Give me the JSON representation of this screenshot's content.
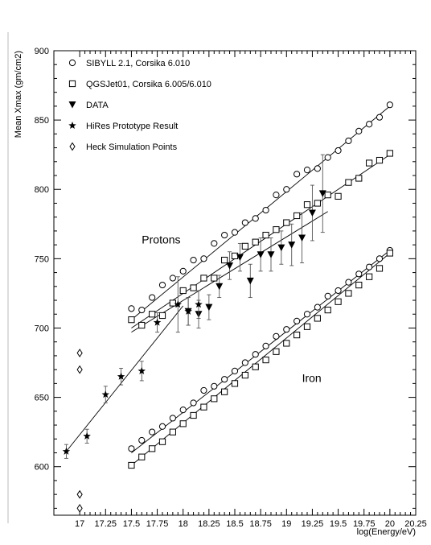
{
  "chart_data": {
    "type": "scatter",
    "xlabel": "log(Energy/eV)",
    "ylabel": "Mean Xmax (gm/cm2)",
    "xlim": [
      16.75,
      20.25
    ],
    "ylim": [
      565,
      900
    ],
    "x_ticks": [
      17,
      17.25,
      17.5,
      17.75,
      18,
      18.25,
      18.5,
      18.75,
      19,
      19.25,
      19.5,
      19.75,
      20,
      20.25
    ],
    "x_tick_labels": [
      "17",
      "17.25",
      "17.5",
      "17.75",
      "18",
      "18.25",
      "18.5",
      "18.75",
      "19",
      "19.25",
      "19.5",
      "19.75",
      "20",
      "20.25"
    ],
    "y_ticks": [
      600,
      650,
      700,
      750,
      800,
      850,
      900
    ],
    "y_tick_labels": [
      "600",
      "650",
      "700",
      "750",
      "800",
      "850",
      "900"
    ],
    "grid": false,
    "legend_position": "top-left",
    "legend": [
      {
        "label": "SIBYLL 2.1, Corsika 6.010",
        "marker": "circle"
      },
      {
        "label": "QGSJet01, Corsika 6.005/6.010",
        "marker": "square"
      },
      {
        "label": "DATA",
        "marker": "triangle-down"
      },
      {
        "label": "HiRes Prototype Result",
        "marker": "star"
      },
      {
        "label": "Heck Simulation Points",
        "marker": "diamond"
      }
    ],
    "annotations": [
      {
        "text": "Protons",
        "x": 17.6,
        "y": 761
      },
      {
        "text": "Iron",
        "x": 19.15,
        "y": 661
      }
    ],
    "series": [
      {
        "name": "SIBYLL 2.1, Corsika 6.010",
        "group": "Protons",
        "marker": "circle",
        "points": [
          [
            17.5,
            714
          ],
          [
            17.6,
            713
          ],
          [
            17.7,
            722
          ],
          [
            17.8,
            731
          ],
          [
            17.9,
            736
          ],
          [
            18.0,
            741
          ],
          [
            18.1,
            749
          ],
          [
            18.2,
            750
          ],
          [
            18.3,
            761
          ],
          [
            18.4,
            767
          ],
          [
            18.5,
            769
          ],
          [
            18.6,
            776
          ],
          [
            18.7,
            779
          ],
          [
            18.8,
            785
          ],
          [
            18.9,
            796
          ],
          [
            19.0,
            800
          ],
          [
            19.1,
            811
          ],
          [
            19.2,
            814
          ],
          [
            19.3,
            815
          ],
          [
            19.4,
            823
          ],
          [
            19.5,
            828
          ],
          [
            19.6,
            835
          ],
          [
            19.7,
            842
          ],
          [
            19.8,
            847
          ],
          [
            19.9,
            852
          ],
          [
            20.0,
            861
          ]
        ],
        "fit": [
          [
            17.5,
            706
          ],
          [
            20.0,
            860
          ]
        ]
      },
      {
        "name": "QGSJet01, Corsika 6.005/6.010",
        "group": "Protons",
        "marker": "square",
        "points": [
          [
            17.5,
            706
          ],
          [
            17.6,
            702
          ],
          [
            17.7,
            710
          ],
          [
            17.8,
            709
          ],
          [
            17.9,
            718
          ],
          [
            18.0,
            727
          ],
          [
            18.1,
            729
          ],
          [
            18.2,
            736
          ],
          [
            18.3,
            736
          ],
          [
            18.4,
            749
          ],
          [
            18.5,
            752
          ],
          [
            18.6,
            759
          ],
          [
            18.7,
            762
          ],
          [
            18.8,
            767
          ],
          [
            18.9,
            771
          ],
          [
            19.0,
            776
          ],
          [
            19.1,
            781
          ],
          [
            19.2,
            789
          ],
          [
            19.3,
            790
          ],
          [
            19.4,
            796
          ],
          [
            19.5,
            795
          ],
          [
            19.6,
            805
          ],
          [
            19.7,
            808
          ],
          [
            19.8,
            819
          ],
          [
            19.9,
            821
          ],
          [
            20.0,
            826
          ]
        ],
        "fit": [
          [
            17.5,
            700
          ],
          [
            20.0,
            825
          ]
        ]
      },
      {
        "name": "SIBYLL 2.1, Corsika 6.010",
        "group": "Iron",
        "marker": "circle",
        "points": [
          [
            17.5,
            613
          ],
          [
            17.6,
            619
          ],
          [
            17.7,
            625
          ],
          [
            17.8,
            629
          ],
          [
            17.9,
            635
          ],
          [
            18.0,
            641
          ],
          [
            18.1,
            646
          ],
          [
            18.2,
            655
          ],
          [
            18.3,
            658
          ],
          [
            18.4,
            663
          ],
          [
            18.5,
            669
          ],
          [
            18.6,
            675
          ],
          [
            18.7,
            681
          ],
          [
            18.8,
            687
          ],
          [
            18.9,
            694
          ],
          [
            19.0,
            699
          ],
          [
            19.1,
            705
          ],
          [
            19.2,
            710
          ],
          [
            19.3,
            715
          ],
          [
            19.4,
            723
          ],
          [
            19.5,
            727
          ],
          [
            19.6,
            733
          ],
          [
            19.7,
            739
          ],
          [
            19.8,
            744
          ],
          [
            19.9,
            750
          ],
          [
            20.0,
            756
          ]
        ],
        "fit": [
          [
            17.5,
            610
          ],
          [
            20.0,
            756
          ]
        ]
      },
      {
        "name": "QGSJet01, Corsika 6.005/6.010",
        "group": "Iron",
        "marker": "square",
        "points": [
          [
            17.5,
            601
          ],
          [
            17.6,
            607
          ],
          [
            17.7,
            613
          ],
          [
            17.8,
            618
          ],
          [
            17.9,
            625
          ],
          [
            18.0,
            631
          ],
          [
            18.1,
            637
          ],
          [
            18.2,
            643
          ],
          [
            18.3,
            649
          ],
          [
            18.4,
            654
          ],
          [
            18.5,
            660
          ],
          [
            18.6,
            666
          ],
          [
            18.7,
            672
          ],
          [
            18.8,
            677
          ],
          [
            18.9,
            683
          ],
          [
            19.0,
            689
          ],
          [
            19.1,
            695
          ],
          [
            19.2,
            701
          ],
          [
            19.3,
            707
          ],
          [
            19.4,
            713
          ],
          [
            19.5,
            719
          ],
          [
            19.6,
            725
          ],
          [
            19.7,
            731
          ],
          [
            19.8,
            737
          ],
          [
            19.9,
            743
          ],
          [
            20.0,
            754
          ]
        ],
        "fit": [
          [
            17.5,
            601
          ],
          [
            20.0,
            754
          ]
        ]
      },
      {
        "name": "DATA",
        "marker": "triangle-down",
        "points": [
          [
            18.05,
            712,
            10
          ],
          [
            18.15,
            710,
            10
          ],
          [
            18.25,
            715,
            9
          ],
          [
            18.35,
            730,
            8
          ],
          [
            18.45,
            745,
            10
          ],
          [
            18.55,
            751,
            10
          ],
          [
            18.65,
            734,
            12
          ],
          [
            18.75,
            753,
            12
          ],
          [
            18.85,
            753,
            12
          ],
          [
            18.95,
            758,
            12
          ],
          [
            19.05,
            760,
            15
          ],
          [
            19.15,
            765,
            18
          ],
          [
            19.25,
            783,
            20
          ],
          [
            19.35,
            797,
            28
          ]
        ],
        "fit": [
          [
            17.5,
            697
          ],
          [
            19.4,
            784
          ]
        ]
      },
      {
        "name": "HiRes Prototype Result",
        "marker": "star",
        "points": [
          [
            16.87,
            611,
            5
          ],
          [
            17.07,
            622,
            5
          ],
          [
            17.25,
            652,
            6
          ],
          [
            17.4,
            665,
            6
          ],
          [
            17.6,
            669,
            7
          ],
          [
            17.75,
            704,
            7
          ],
          [
            17.95,
            717,
            20
          ],
          [
            18.05,
            712,
            10
          ],
          [
            18.15,
            717,
            10
          ]
        ],
        "fit": [
          [
            16.87,
            611
          ],
          [
            18.0,
            716
          ]
        ]
      },
      {
        "name": "Heck Simulation Points",
        "marker": "diamond",
        "points": [
          [
            17.0,
            682
          ],
          [
            17.0,
            670
          ],
          [
            17.0,
            580
          ],
          [
            17.0,
            570
          ]
        ]
      }
    ]
  }
}
